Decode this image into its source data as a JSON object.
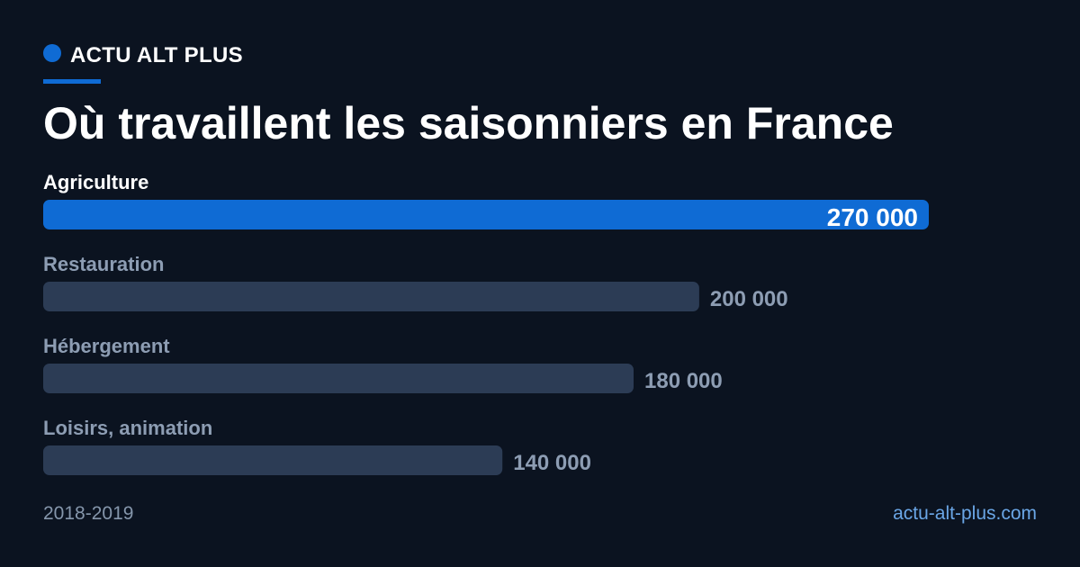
{
  "brand": {
    "name": "ACTU ALT PLUS"
  },
  "title": "Où travaillent les saisonniers en France",
  "chart_data": {
    "type": "bar",
    "orientation": "horizontal",
    "title": "Où travaillent les saisonniers en France",
    "categories": [
      "Agriculture",
      "Restauration",
      "Hébergement",
      "Loisirs, animation"
    ],
    "values": [
      270000,
      200000,
      180000,
      140000
    ],
    "value_labels": [
      "270 000",
      "200 000",
      "180 000",
      "140 000"
    ],
    "highlight_index": 0,
    "xlim": [
      0,
      270000
    ],
    "grid": false,
    "legend": "none"
  },
  "colors": {
    "background": "#0b1320",
    "highlight_bar": "#0f6bd4",
    "bar": "#2c3c55",
    "muted_text": "#8d9db3",
    "link": "#6aa6e6"
  },
  "footer": {
    "period": "2018-2019",
    "source": "actu-alt-plus.com"
  }
}
